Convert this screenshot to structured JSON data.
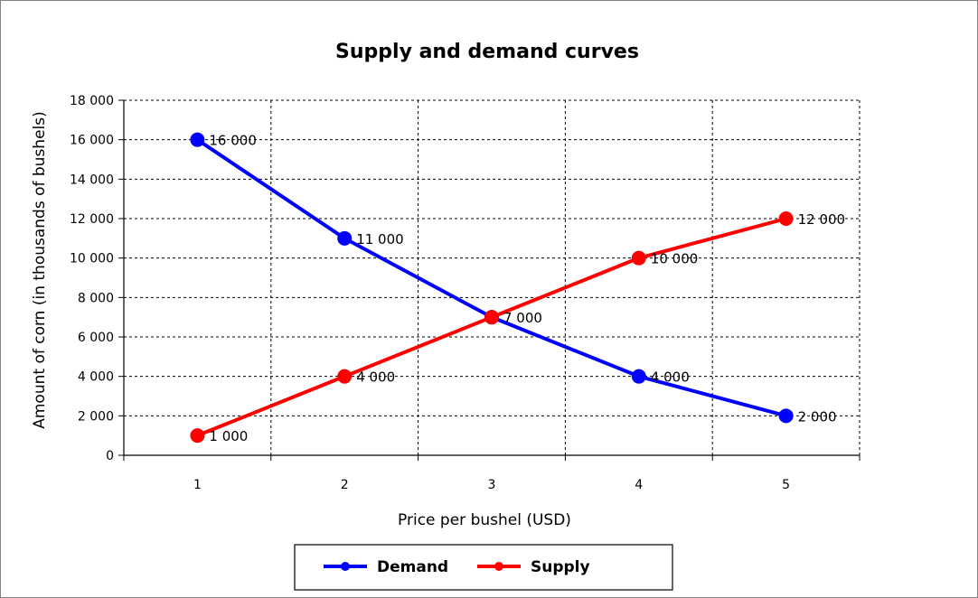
{
  "chart_data": {
    "type": "line",
    "title": "Supply and demand curves",
    "xlabel": "Price per bushel (USD)",
    "ylabel": "Amount of corn (in thousands of bushels)",
    "categories": [
      "1",
      "2",
      "3",
      "4",
      "5"
    ],
    "ylim": [
      0,
      18000
    ],
    "y_ticks": [
      0,
      2000,
      4000,
      6000,
      8000,
      10000,
      12000,
      14000,
      16000,
      18000
    ],
    "y_tick_labels": [
      "0",
      "2 000",
      "4 000",
      "6 000",
      "8 000",
      "10 000",
      "12 000",
      "14 000",
      "16 000",
      "18 000"
    ],
    "grid": true,
    "legend_position": "bottom",
    "series": [
      {
        "name": "Demand",
        "color": "#0000ff",
        "x": [
          1,
          2,
          3,
          4,
          5
        ],
        "values": [
          16000,
          11000,
          7000,
          4000,
          2000
        ],
        "labels": [
          "16 000",
          "11 000",
          "",
          "4 000",
          "2 000"
        ]
      },
      {
        "name": "Supply",
        "color": "#ff0000",
        "x": [
          1,
          2,
          3,
          4,
          5
        ],
        "values": [
          1000,
          4000,
          7000,
          10000,
          12000
        ],
        "labels": [
          "1 000",
          "4 000",
          "7 000",
          "10 000",
          "12 000"
        ]
      }
    ]
  }
}
